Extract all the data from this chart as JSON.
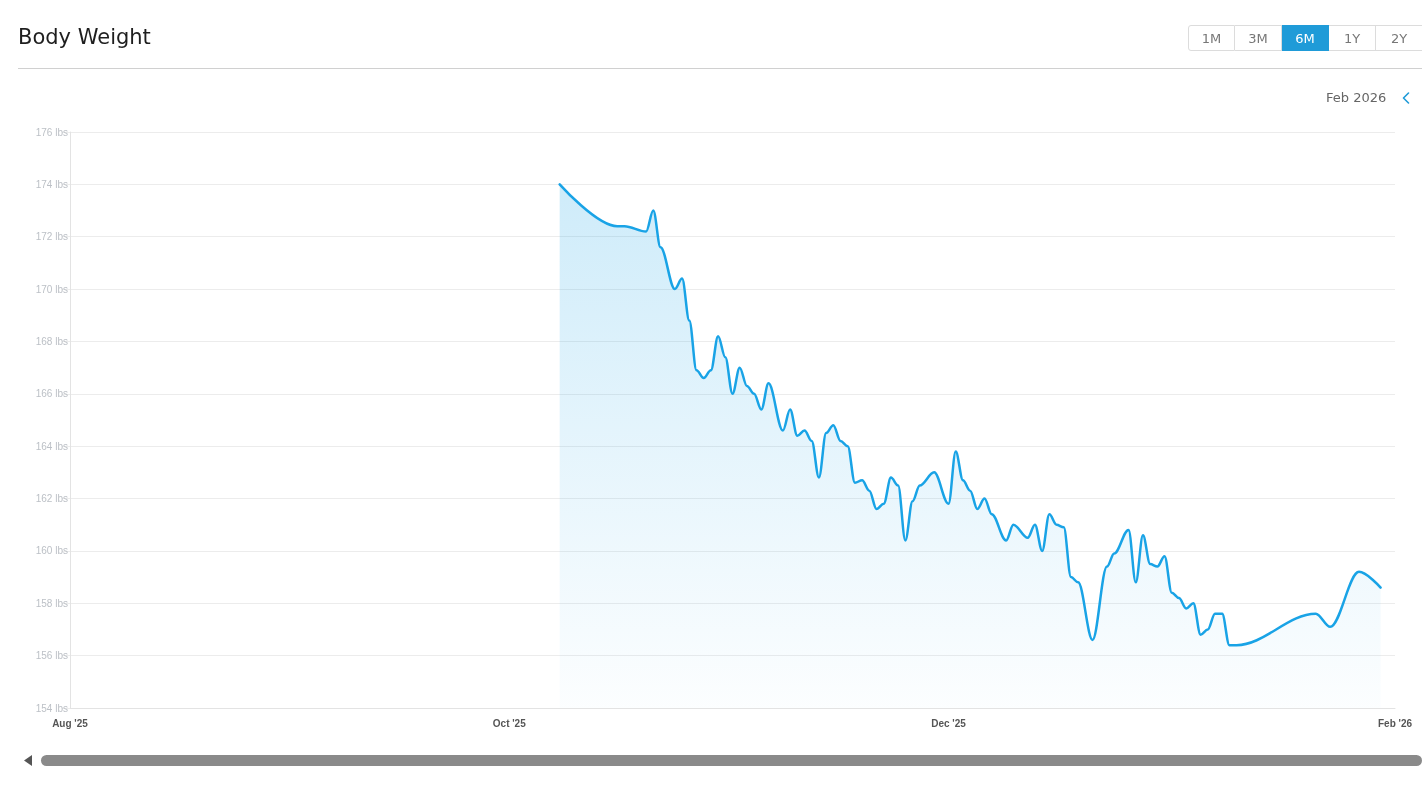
{
  "chart_data": {
    "type": "area",
    "title": "Body Weight",
    "annotations": [
      "1M",
      "3M",
      "6M",
      "1Y",
      "2Y",
      "Feb 2026"
    ],
    "x": [
      "2025-10-08",
      "2025-10-16",
      "2025-10-17",
      "2025-10-20",
      "2025-10-21",
      "2025-10-22",
      "2025-10-24",
      "2025-10-25",
      "2025-10-26",
      "2025-10-27",
      "2025-10-28",
      "2025-10-29",
      "2025-10-30",
      "2025-10-31",
      "2025-11-01",
      "2025-11-02",
      "2025-11-03",
      "2025-11-04",
      "2025-11-05",
      "2025-11-06",
      "2025-11-08",
      "2025-11-09",
      "2025-11-10",
      "2025-11-11",
      "2025-11-12",
      "2025-11-13",
      "2025-11-14",
      "2025-11-15",
      "2025-11-16",
      "2025-11-17",
      "2025-11-18",
      "2025-11-19",
      "2025-11-20",
      "2025-11-21",
      "2025-11-22",
      "2025-11-23",
      "2025-11-24",
      "2025-11-25",
      "2025-11-26",
      "2025-11-27",
      "2025-11-29",
      "2025-12-01",
      "2025-12-02",
      "2025-12-03",
      "2025-12-04",
      "2025-12-05",
      "2025-12-06",
      "2025-12-07",
      "2025-12-09",
      "2025-12-10",
      "2025-12-12",
      "2025-12-13",
      "2025-12-14",
      "2025-12-15",
      "2025-12-16",
      "2025-12-17",
      "2025-12-18",
      "2025-12-19",
      "2025-12-21",
      "2025-12-23",
      "2025-12-24",
      "2025-12-26",
      "2025-12-27",
      "2025-12-28",
      "2025-12-29",
      "2025-12-30",
      "2025-12-31",
      "2026-01-01",
      "2026-01-02",
      "2026-01-03",
      "2026-01-04",
      "2026-01-05",
      "2026-01-06",
      "2026-01-07",
      "2026-01-08",
      "2026-01-09",
      "2026-01-10",
      "2026-01-21",
      "2026-01-23",
      "2026-01-27",
      "2026-01-30"
    ],
    "series": [
      {
        "color": "#19a3e6",
        "values": [
          174.0,
          172.4,
          172.4,
          172.2,
          173.0,
          171.6,
          170.0,
          170.4,
          168.8,
          166.9,
          166.6,
          166.9,
          168.2,
          167.4,
          166.0,
          167.0,
          166.3,
          166.0,
          165.4,
          166.4,
          164.6,
          165.4,
          164.4,
          164.6,
          164.2,
          162.8,
          164.5,
          164.8,
          164.2,
          164.0,
          162.6,
          162.7,
          162.3,
          161.6,
          161.8,
          162.8,
          162.5,
          160.4,
          161.9,
          162.5,
          163.0,
          161.8,
          163.8,
          162.7,
          162.3,
          161.6,
          162.0,
          161.4,
          160.4,
          161.0,
          160.5,
          161.0,
          160.0,
          161.4,
          161.0,
          160.9,
          159.0,
          158.8,
          156.6,
          159.4,
          159.9,
          160.8,
          158.8,
          160.6,
          159.5,
          159.4,
          159.8,
          158.4,
          158.2,
          157.8,
          158.0,
          156.8,
          157.0,
          157.6,
          157.6,
          156.4,
          156.4,
          157.6,
          157.1,
          159.2,
          158.6
        ]
      }
    ],
    "xlim": [
      "2025-08-01",
      "2026-02-01"
    ],
    "xticks": [
      {
        "value": "2025-08-01",
        "label": "Aug '25"
      },
      {
        "value": "2025-10-01",
        "label": "Oct '25"
      },
      {
        "value": "2025-12-01",
        "label": "Dec '25"
      },
      {
        "value": "2026-02-01",
        "label": "Feb '26"
      }
    ],
    "ylim": [
      154,
      176
    ],
    "yticks": [
      {
        "value": 154,
        "label": "154 lbs"
      },
      {
        "value": 156,
        "label": "156 lbs"
      },
      {
        "value": 158,
        "label": "158 lbs"
      },
      {
        "value": 160,
        "label": "160 lbs"
      },
      {
        "value": 162,
        "label": "162 lbs"
      },
      {
        "value": 164,
        "label": "164 lbs"
      },
      {
        "value": 166,
        "label": "166 lbs"
      },
      {
        "value": 168,
        "label": "168 lbs"
      },
      {
        "value": 170,
        "label": "170 lbs"
      },
      {
        "value": 172,
        "label": "172 lbs"
      },
      {
        "value": 174,
        "label": "174 lbs"
      },
      {
        "value": 176,
        "label": "176 lbs"
      }
    ],
    "grid": "y",
    "marker": "none"
  }
}
